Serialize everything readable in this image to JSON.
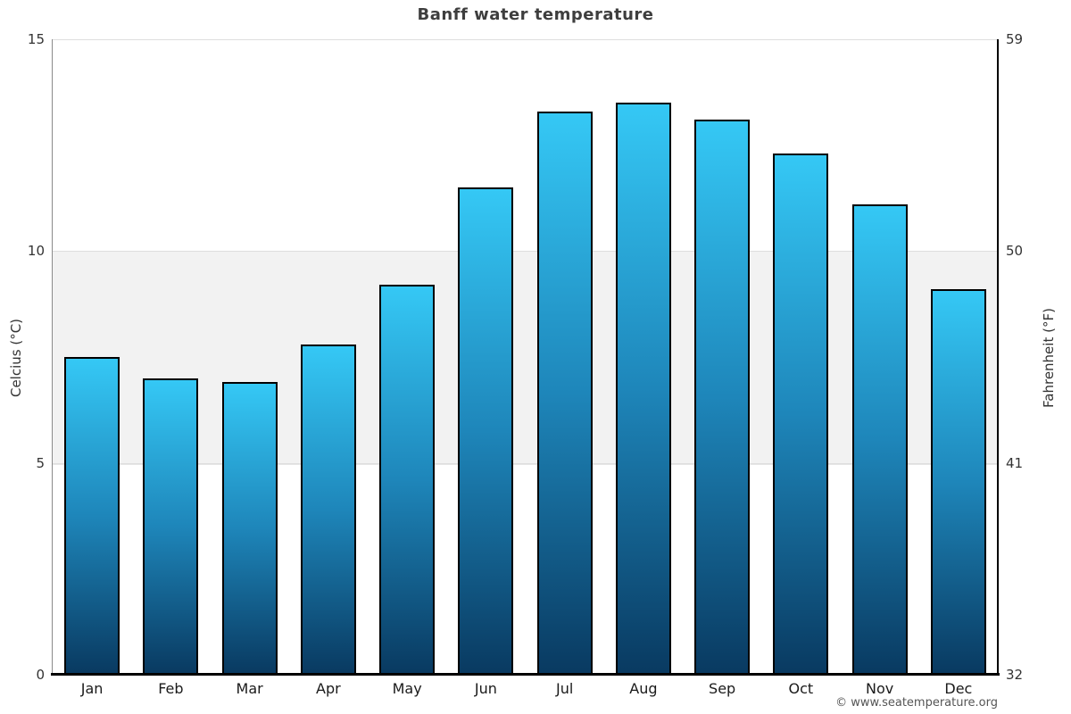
{
  "title": "Banff water temperature",
  "watermark": "© www.seatemperature.org",
  "chart_data": {
    "type": "bar",
    "title": "Banff water temperature",
    "categories": [
      "Jan",
      "Feb",
      "Mar",
      "Apr",
      "May",
      "Jun",
      "Jul",
      "Aug",
      "Sep",
      "Oct",
      "Nov",
      "Dec"
    ],
    "values": [
      7.5,
      7.0,
      6.9,
      7.8,
      9.2,
      11.5,
      13.3,
      13.5,
      13.1,
      12.3,
      11.1,
      9.1
    ],
    "xlabel": "",
    "ylabel_left": "Celcius (°C)",
    "ylabel_right": "Fahrenheit (°F)",
    "ylim": [
      0,
      15
    ],
    "yticks_left": [
      "0",
      "5",
      "10",
      "15"
    ],
    "yticks_left_values": [
      0,
      5,
      10,
      15
    ],
    "yticks_right": [
      "32",
      "41",
      "50",
      "59"
    ],
    "grid": "horizontal gridlines at 5, 10, 15; shaded band between 5 and 10",
    "legend": "none",
    "band": {
      "from": 5,
      "to": 10,
      "color": "#f2f2f2",
      "edge_color": "#e7e7e7"
    },
    "gridline_color": "#dedede",
    "bar_gradient_top": "#35c8f5",
    "bar_gradient_mid": "#1e86ba",
    "bar_gradient_bottom": "#093a61",
    "bar_border_color": "#000000"
  }
}
